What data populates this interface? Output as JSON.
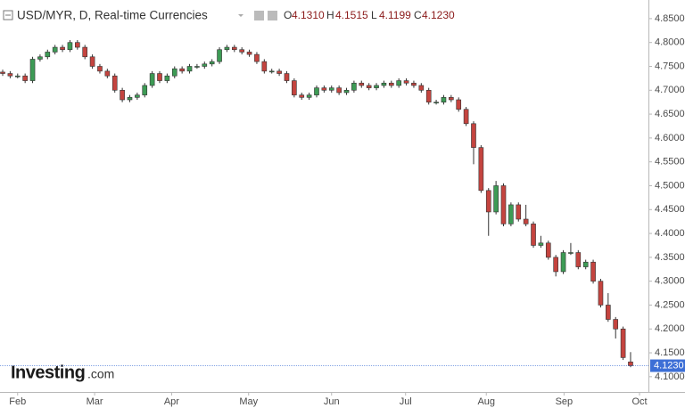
{
  "chart_data": {
    "type": "candlestick",
    "title": "USD/MYR, D, Real-time Currencies",
    "ohlc_header": {
      "labels": [
        "O",
        "H",
        "L",
        "C"
      ],
      "values": [
        "4.1310",
        "4.1515",
        "4.1199",
        "4.1230"
      ]
    },
    "watermark": [
      "Investing",
      ".com"
    ],
    "xlim": [
      -0.36,
      86.39
    ],
    "xticks": [
      {
        "value": 2.0,
        "label": "Feb"
      },
      {
        "value": 12.3,
        "label": "Mar"
      },
      {
        "value": 22.6,
        "label": "Apr"
      },
      {
        "value": 32.9,
        "label": "May"
      },
      {
        "value": 44.0,
        "label": "Jun"
      },
      {
        "value": 53.9,
        "label": "Jul"
      },
      {
        "value": 64.7,
        "label": "Aug"
      },
      {
        "value": 75.1,
        "label": "Sep"
      },
      {
        "value": 85.2,
        "label": "Oct"
      }
    ],
    "ylim": [
      4.068,
      4.889
    ],
    "yticks": [
      {
        "value": 4.1,
        "label": "4.1000"
      },
      {
        "value": 4.15,
        "label": "4.1500"
      },
      {
        "value": 4.2,
        "label": "4.2000"
      },
      {
        "value": 4.25,
        "label": "4.2500"
      },
      {
        "value": 4.3,
        "label": "4.3000"
      },
      {
        "value": 4.35,
        "label": "4.3500"
      },
      {
        "value": 4.4,
        "label": "4.4000"
      },
      {
        "value": 4.45,
        "label": "4.4500"
      },
      {
        "value": 4.5,
        "label": "4.5000"
      },
      {
        "value": 4.55,
        "label": "4.5500"
      },
      {
        "value": 4.6,
        "label": "4.6000"
      },
      {
        "value": 4.65,
        "label": "4.6500"
      },
      {
        "value": 4.7,
        "label": "4.7000"
      },
      {
        "value": 4.75,
        "label": "4.7500"
      },
      {
        "value": 4.8,
        "label": "4.8000"
      },
      {
        "value": 4.85,
        "label": "4.8500"
      }
    ],
    "up_color": "#3d9b55",
    "down_color": "#c4443f",
    "open": [
      4.738,
      4.735,
      4.73,
      4.73,
      4.72,
      4.765,
      4.77,
      4.78,
      4.79,
      4.785,
      4.8,
      4.79,
      4.77,
      4.75,
      4.74,
      4.73,
      4.7,
      4.68,
      4.685,
      4.69,
      4.71,
      4.735,
      4.72,
      4.73,
      4.745,
      4.74,
      4.75,
      4.75,
      4.755,
      4.76,
      4.785,
      4.79,
      4.785,
      4.78,
      4.775,
      4.76,
      4.74,
      4.74,
      4.735,
      4.72,
      4.69,
      4.685,
      4.69,
      4.705,
      4.7,
      4.705,
      4.695,
      4.7,
      4.715,
      4.71,
      4.705,
      4.71,
      4.715,
      4.71,
      4.72,
      4.715,
      4.71,
      4.7,
      4.675,
      4.675,
      4.685,
      4.68,
      4.66,
      4.63,
      4.58,
      4.49,
      4.445,
      4.5,
      4.42,
      4.46,
      4.43,
      4.42,
      4.375,
      4.38,
      4.35,
      4.32,
      4.36,
      4.36,
      4.33,
      4.34,
      4.3,
      4.25,
      4.22,
      4.2,
      4.131
    ],
    "high": [
      4.743,
      4.74,
      4.735,
      4.735,
      4.77,
      4.775,
      4.785,
      4.795,
      4.795,
      4.805,
      4.805,
      4.795,
      4.775,
      4.755,
      4.745,
      4.735,
      4.705,
      4.69,
      4.695,
      4.715,
      4.74,
      4.74,
      4.735,
      4.75,
      4.75,
      4.755,
      4.755,
      4.76,
      4.765,
      4.79,
      4.795,
      4.795,
      4.79,
      4.785,
      4.78,
      4.765,
      4.745,
      4.745,
      4.74,
      4.725,
      4.695,
      4.695,
      4.71,
      4.71,
      4.71,
      4.71,
      4.705,
      4.72,
      4.72,
      4.715,
      4.715,
      4.72,
      4.72,
      4.725,
      4.725,
      4.72,
      4.715,
      4.705,
      4.68,
      4.69,
      4.69,
      4.685,
      4.665,
      4.635,
      4.585,
      4.495,
      4.51,
      4.505,
      4.465,
      4.465,
      4.46,
      4.425,
      4.395,
      4.385,
      4.355,
      4.365,
      4.38,
      4.365,
      4.345,
      4.345,
      4.305,
      4.275,
      4.225,
      4.205,
      4.1515
    ],
    "low": [
      4.73,
      4.725,
      4.725,
      4.715,
      4.715,
      4.76,
      4.765,
      4.775,
      4.78,
      4.78,
      4.785,
      4.765,
      4.745,
      4.735,
      4.725,
      4.695,
      4.675,
      4.675,
      4.68,
      4.685,
      4.705,
      4.715,
      4.715,
      4.725,
      4.735,
      4.735,
      4.745,
      4.745,
      4.75,
      4.755,
      4.78,
      4.78,
      4.775,
      4.77,
      4.755,
      4.735,
      4.735,
      4.73,
      4.715,
      4.685,
      4.68,
      4.68,
      4.685,
      4.695,
      4.695,
      4.69,
      4.69,
      4.695,
      4.705,
      4.7,
      4.7,
      4.705,
      4.705,
      4.705,
      4.71,
      4.705,
      4.695,
      4.67,
      4.67,
      4.67,
      4.675,
      4.655,
      4.625,
      4.545,
      4.485,
      4.395,
      4.44,
      4.415,
      4.415,
      4.425,
      4.415,
      4.37,
      4.37,
      4.345,
      4.31,
      4.315,
      4.355,
      4.325,
      4.325,
      4.295,
      4.245,
      4.215,
      4.18,
      4.135,
      4.1199
    ],
    "close": [
      4.735,
      4.73,
      4.73,
      4.72,
      4.765,
      4.77,
      4.78,
      4.79,
      4.785,
      4.8,
      4.79,
      4.77,
      4.75,
      4.74,
      4.73,
      4.7,
      4.68,
      4.685,
      4.69,
      4.71,
      4.735,
      4.72,
      4.73,
      4.745,
      4.74,
      4.75,
      4.75,
      4.755,
      4.76,
      4.785,
      4.79,
      4.785,
      4.78,
      4.775,
      4.76,
      4.74,
      4.74,
      4.735,
      4.72,
      4.69,
      4.685,
      4.69,
      4.705,
      4.7,
      4.705,
      4.695,
      4.7,
      4.715,
      4.71,
      4.705,
      4.71,
      4.715,
      4.71,
      4.72,
      4.715,
      4.71,
      4.7,
      4.675,
      4.675,
      4.685,
      4.68,
      4.66,
      4.63,
      4.58,
      4.49,
      4.445,
      4.5,
      4.42,
      4.46,
      4.43,
      4.42,
      4.375,
      4.38,
      4.35,
      4.32,
      4.36,
      4.36,
      4.33,
      4.34,
      4.3,
      4.25,
      4.22,
      4.2,
      4.14,
      4.123
    ]
  }
}
